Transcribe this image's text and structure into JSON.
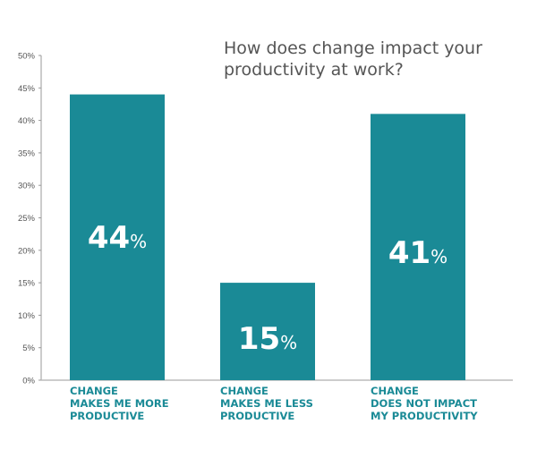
{
  "chart_data": {
    "type": "bar",
    "title": "How does change impact your productivity at work?",
    "categories": [
      "CHANGE MAKES ME MORE PRODUCTIVE",
      "CHANGE MAKES ME LESS PRODUCTIVE",
      "CHANGE DOES NOT IMPACT MY PRODUCTIVITY"
    ],
    "category_lines": [
      [
        "CHANGE",
        "MAKES ME MORE",
        "PRODUCTIVE"
      ],
      [
        "CHANGE",
        "MAKES ME LESS",
        "PRODUCTIVE"
      ],
      [
        "CHANGE",
        "DOES NOT IMPACT",
        "MY PRODUCTIVITY"
      ]
    ],
    "values": [
      44,
      15,
      41
    ],
    "data_labels": [
      {
        "num": "44",
        "unit": "%"
      },
      {
        "num": "15",
        "unit": "%"
      },
      {
        "num": "41",
        "unit": "%"
      }
    ],
    "ylim": [
      0,
      50
    ],
    "yticks": [
      "0%",
      "5%",
      "10%",
      "15%",
      "20%",
      "25%",
      "30%",
      "35%",
      "40%",
      "45%",
      "50%"
    ],
    "grid": false,
    "bar_color": "#1a8a96"
  }
}
